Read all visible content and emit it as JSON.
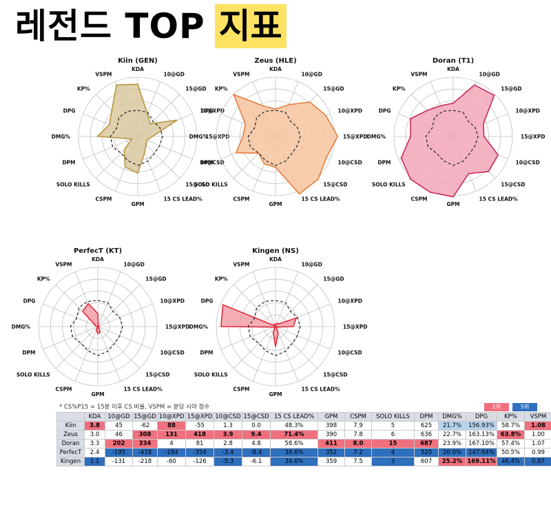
{
  "title": {
    "main": "레전드 TOP",
    "highlight": "지표"
  },
  "colors": {
    "title_highlight": "#fde264",
    "rank1": "#f0707e",
    "rank5": "#2e6fbe"
  },
  "chart_data": [
    {
      "type": "radar",
      "title": "Kiin (GEN)",
      "axes": [
        "KDA",
        "10@GD",
        "15@GD",
        "10@XPD",
        "15@XPD",
        "10@CSD",
        "15@CSD",
        "15 CS LEAD%",
        "GPM",
        "CSPM",
        "SOLO KILLS",
        "DPM",
        "DMG%",
        "DPG",
        "KP%",
        "VSPM"
      ],
      "values": [
        0.88,
        0.42,
        0.3,
        0.72,
        0.25,
        0.16,
        0.2,
        0.3,
        0.62,
        0.56,
        0.32,
        0.11,
        0.68,
        0.52,
        0.62,
        0.94
      ],
      "average_values": [
        0.44,
        0.44,
        0.36,
        0.4,
        0.42,
        0.4,
        0.4,
        0.45,
        0.49,
        0.44,
        0.4,
        0.46,
        0.46,
        0.38,
        0.45,
        0.46
      ],
      "fill": "#d9c9a0",
      "stroke": "#b8963e"
    },
    {
      "type": "radar",
      "title": "Zeus (HLE)",
      "axes": [
        "KDA",
        "10@GD",
        "15@GD",
        "10@XPD",
        "15@XPD",
        "10@CSD",
        "15@CSD",
        "15 CS LEAD%",
        "GPM",
        "CSPM",
        "SOLO KILLS",
        "DPM",
        "DMG%",
        "DPG",
        "KP%",
        "VSPM"
      ],
      "values": [
        0.46,
        0.58,
        0.82,
        0.92,
        1.05,
        0.93,
        1.02,
        1.05,
        0.52,
        0.5,
        0.4,
        0.72,
        0.55,
        0.55,
        1.0,
        0.56
      ],
      "average_values": [
        0.44,
        0.44,
        0.36,
        0.4,
        0.42,
        0.4,
        0.4,
        0.45,
        0.49,
        0.44,
        0.4,
        0.46,
        0.46,
        0.38,
        0.45,
        0.46
      ],
      "fill": "#f6c4a0",
      "stroke": "#e57e3c"
    },
    {
      "type": "radar",
      "title": "Doran (T1)",
      "axes": [
        "KDA",
        "10@GD",
        "15@GD",
        "10@XPD",
        "15@XPD",
        "10@CSD",
        "15@CSD",
        "15 CS LEAD%",
        "GPM",
        "CSPM",
        "SOLO KILLS",
        "DPM",
        "DMG%",
        "DPG",
        "KP%",
        "VSPM"
      ],
      "values": [
        0.56,
        0.94,
        0.98,
        0.55,
        0.52,
        0.82,
        0.84,
        0.68,
        1.02,
        1.02,
        1.02,
        0.95,
        0.72,
        0.78,
        0.62,
        0.56
      ],
      "average_values": [
        0.44,
        0.44,
        0.36,
        0.4,
        0.42,
        0.4,
        0.4,
        0.45,
        0.49,
        0.44,
        0.4,
        0.46,
        0.46,
        0.38,
        0.45,
        0.46
      ],
      "fill": "#f2a7b8",
      "stroke": "#c8285a"
    },
    {
      "type": "radar",
      "title": "PerfecT (KT)",
      "axes": [
        "KDA",
        "10@GD",
        "15@GD",
        "10@XPD",
        "15@XPD",
        "10@CSD",
        "15@CSD",
        "15 CS LEAD%",
        "GPM",
        "CSPM",
        "SOLO KILLS",
        "DPM",
        "DMG%",
        "DPG",
        "KP%",
        "VSPM"
      ],
      "values": [
        0.22,
        0.02,
        0.02,
        0.02,
        0.02,
        0.02,
        0.02,
        0.1,
        0.12,
        0.06,
        0.0,
        0.0,
        0.02,
        0.04,
        0.36,
        0.42
      ],
      "average_values": [
        0.44,
        0.44,
        0.36,
        0.4,
        0.42,
        0.4,
        0.4,
        0.45,
        0.49,
        0.44,
        0.4,
        0.46,
        0.46,
        0.38,
        0.45,
        0.46
      ],
      "fill": "#f4a0a8",
      "stroke": "#e02a3a"
    },
    {
      "type": "radar",
      "title": "Kingen (NS)",
      "axes": [
        "KDA",
        "10@GD",
        "15@GD",
        "10@XPD",
        "15@XPD",
        "10@CSD",
        "15@CSD",
        "15 CS LEAD%",
        "GPM",
        "CSPM",
        "SOLO KILLS",
        "DPM",
        "DMG%",
        "DPG",
        "KP%",
        "VSPM"
      ],
      "values": [
        0.02,
        0.06,
        0.06,
        0.38,
        0.3,
        0.02,
        0.02,
        0.12,
        0.34,
        0.1,
        0.0,
        0.02,
        0.92,
        0.96,
        0.02,
        0.04
      ],
      "average_values": [
        0.44,
        0.44,
        0.36,
        0.4,
        0.42,
        0.4,
        0.4,
        0.45,
        0.49,
        0.44,
        0.4,
        0.46,
        0.46,
        0.38,
        0.45,
        0.46
      ],
      "fill": "#f4a0a8",
      "stroke": "#e02a3a"
    }
  ],
  "table": {
    "note": "* CS%P15 = 15분 이후 CS 비율, VSPM = 분당 시야 점수",
    "legend": [
      "1위",
      "5위"
    ],
    "headers": [
      "",
      "KDA",
      "10@GD",
      "15@GD",
      "10@XPD",
      "15@XPD",
      "10@CSD",
      "15@CSD",
      "15 CS LEAD%",
      "GPM",
      "CSPM",
      "SOLO KILLS",
      "DPM",
      "DMG%",
      "DPG",
      "KP%",
      "VSPM"
    ],
    "rows": [
      {
        "name": "Kiin",
        "cells": [
          "3.8",
          "45",
          "-62",
          "88",
          "-55",
          "1.3",
          "0.0",
          "48.3%",
          "398",
          "7.9",
          "5",
          "625",
          "21.7%",
          "156.93%",
          "58.7%",
          "1.08"
        ],
        "bg": [
          "#f0707e",
          "#fff",
          "#fff",
          "#f0707e",
          "#fff",
          "#fff",
          "#fff",
          "#fff",
          "#fff",
          "#fff",
          "#fff",
          "#fff",
          "#b7d3ee",
          "#b7d3ee",
          "#fff",
          "#f0707e"
        ],
        "bold": [
          1,
          0,
          0,
          1,
          0,
          0,
          0,
          0,
          0,
          0,
          0,
          0,
          0,
          0,
          0,
          1
        ]
      },
      {
        "name": "Zeus",
        "cells": [
          "3.0",
          "46",
          "308",
          "131",
          "418",
          "3.9",
          "9.4",
          "71.4%",
          "390",
          "7.8",
          "6",
          "636",
          "22.7%",
          "163.13%",
          "63.8%",
          "1.00"
        ],
        "bg": [
          "#fff",
          "#fff",
          "#f0707e",
          "#f0707e",
          "#f0707e",
          "#f0707e",
          "#f0707e",
          "#f0707e",
          "#fff",
          "#fff",
          "#fff",
          "#fff",
          "#fff",
          "#fff",
          "#f0707e",
          "#fff"
        ],
        "bold": [
          0,
          0,
          1,
          1,
          1,
          1,
          1,
          1,
          0,
          0,
          0,
          0,
          0,
          0,
          1,
          0
        ]
      },
      {
        "name": "Doran",
        "cells": [
          "3.3",
          "202",
          "334",
          "4",
          "81",
          "2.8",
          "4.8",
          "58.6%",
          "411",
          "8.0",
          "15",
          "687",
          "23.9%",
          "167.10%",
          "57.4%",
          "1.07"
        ],
        "bg": [
          "#fff",
          "#f0707e",
          "#f0707e",
          "#fff",
          "#fff",
          "#fff",
          "#fff",
          "#fff",
          "#f0707e",
          "#f0707e",
          "#f0707e",
          "#f0707e",
          "#fff",
          "#fff",
          "#fff",
          "#fff"
        ],
        "bold": [
          0,
          1,
          1,
          0,
          0,
          0,
          0,
          0,
          1,
          1,
          1,
          1,
          0,
          0,
          0,
          0
        ]
      },
      {
        "name": "PerfecT",
        "cells": [
          "2.4",
          "-195",
          "-418",
          "-184",
          "-354",
          "-3.4",
          "-8.4",
          "34.6%",
          "352",
          "7.2",
          "4",
          "520",
          "20.0%",
          "147.64%",
          "50.5%",
          "0.99"
        ],
        "bg": [
          "#fff",
          "#2e6fbe",
          "#2e6fbe",
          "#2e6fbe",
          "#2e6fbe",
          "#2e6fbe",
          "#2e6fbe",
          "#2e6fbe",
          "#2e6fbe",
          "#2e6fbe",
          "#2e6fbe",
          "#2e6fbe",
          "#2e6fbe",
          "#2e6fbe",
          "#fff",
          "#fff"
        ],
        "bold": [
          0,
          0,
          0,
          0,
          0,
          0,
          0,
          0,
          0,
          0,
          0,
          0,
          0,
          0,
          0,
          0
        ]
      },
      {
        "name": "Kingen",
        "cells": [
          "1.1",
          "-131",
          "-218",
          "-60",
          "-126",
          "-5.3",
          "-6.1",
          "34.6%",
          "359",
          "7.5",
          "3",
          "607",
          "25.2%",
          "169.11%",
          "46.4%",
          "0.87"
        ],
        "bg": [
          "#2e6fbe",
          "#fff",
          "#fff",
          "#fff",
          "#fff",
          "#2e6fbe",
          "#fff",
          "#2e6fbe",
          "#fff",
          "#fff",
          "#2e6fbe",
          "#fff",
          "#f0707e",
          "#f0707e",
          "#2e6fbe",
          "#2e6fbe"
        ],
        "bold": [
          0,
          0,
          0,
          0,
          0,
          0,
          0,
          0,
          0,
          0,
          0,
          0,
          1,
          1,
          0,
          0
        ]
      }
    ]
  }
}
